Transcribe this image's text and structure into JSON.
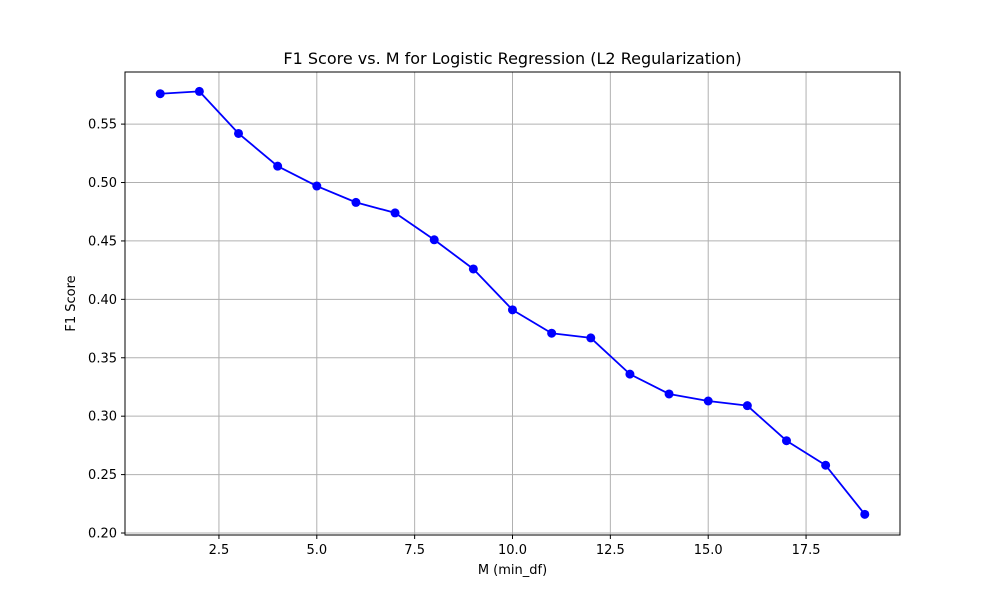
{
  "chart_data": {
    "type": "line",
    "title": "F1 Score vs. M for Logistic Regression (L2 Regularization)",
    "xlabel": "M (min_df)",
    "ylabel": "F1 Score",
    "xlim": [
      0.1,
      19.9
    ],
    "ylim": [
      0.1983,
      0.5946
    ],
    "xticks": [
      2.5,
      5.0,
      7.5,
      10.0,
      12.5,
      15.0,
      17.5
    ],
    "xtick_labels": [
      "2.5",
      "5.0",
      "7.5",
      "10.0",
      "12.5",
      "15.0",
      "17.5"
    ],
    "yticks": [
      0.2,
      0.25,
      0.3,
      0.35,
      0.4,
      0.45,
      0.5,
      0.55
    ],
    "ytick_labels": [
      "0.20",
      "0.25",
      "0.30",
      "0.35",
      "0.40",
      "0.45",
      "0.50",
      "0.55"
    ],
    "grid": true,
    "series": [
      {
        "color": "#0000ff",
        "marker": "circle",
        "x": [
          1,
          2,
          3,
          4,
          5,
          6,
          7,
          8,
          9,
          10,
          11,
          12,
          13,
          14,
          15,
          16,
          17,
          18,
          19
        ],
        "values": [
          0.576,
          0.578,
          0.542,
          0.514,
          0.497,
          0.483,
          0.474,
          0.451,
          0.426,
          0.391,
          0.371,
          0.367,
          0.336,
          0.319,
          0.313,
          0.309,
          0.279,
          0.258,
          0.216
        ]
      }
    ]
  }
}
